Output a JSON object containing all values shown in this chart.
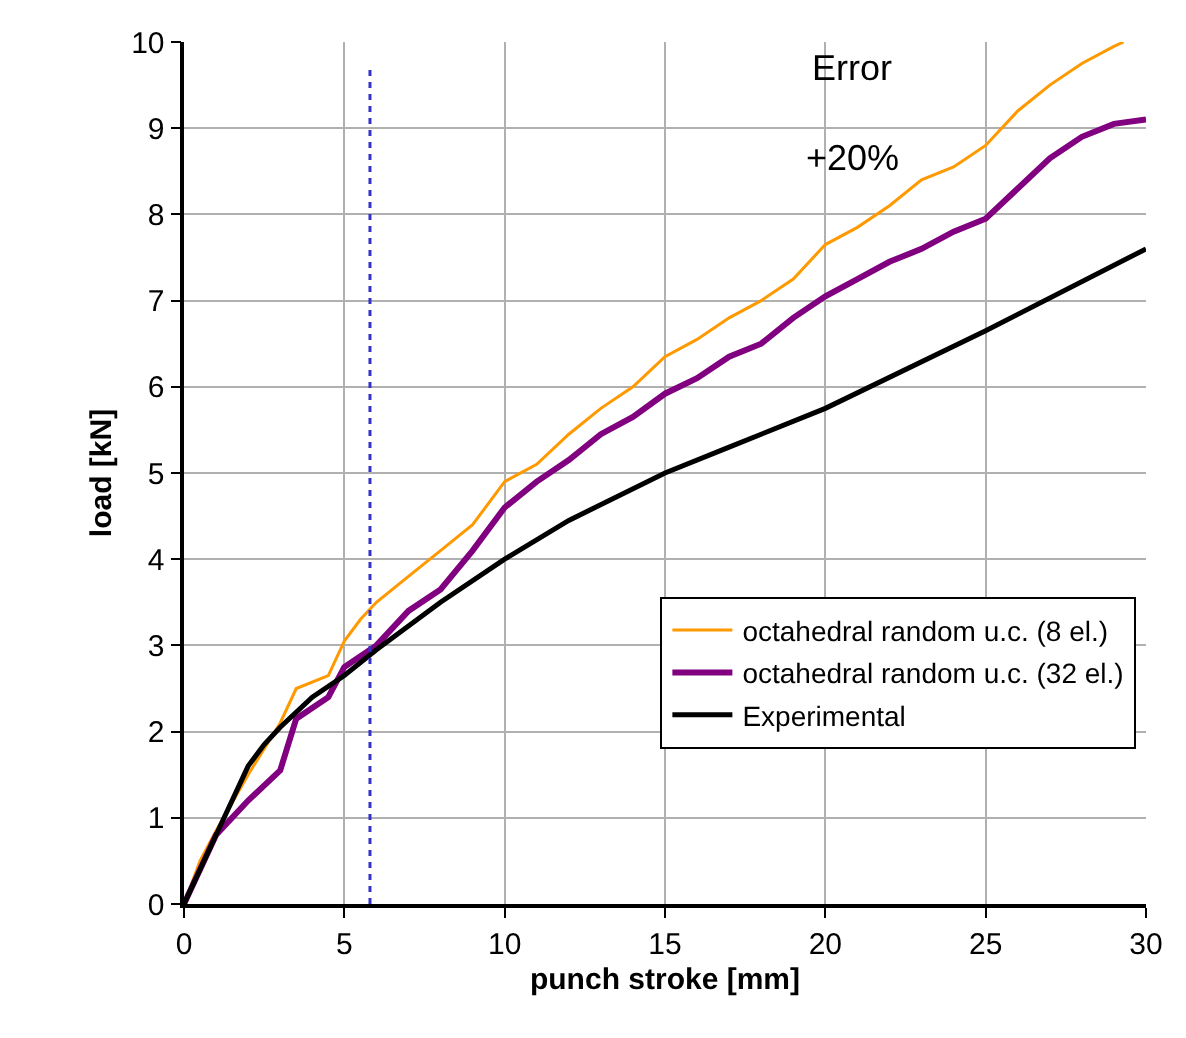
{
  "chart_data": {
    "type": "line",
    "xlabel": "punch stroke [mm]",
    "ylabel": "load [kN]",
    "xlim": [
      0,
      30
    ],
    "xticks": [
      0,
      5,
      10,
      15,
      20,
      25,
      30
    ],
    "ylim": [
      0,
      10
    ],
    "yticks": [
      0,
      1,
      2,
      3,
      4,
      5,
      6,
      7,
      8,
      9,
      10
    ],
    "grid": true,
    "legend": "bottom right",
    "line_style": "solid",
    "marker": "none",
    "annotations": [
      "Error",
      "+20%"
    ],
    "ref_lines": [
      {
        "axis": "x",
        "value": 5.8,
        "label": null,
        "color": "#3333cc",
        "line_style": "dotted"
      }
    ],
    "series": [
      {
        "name": "octahedral random u.c. (8 el.)",
        "color": "#ff9900",
        "x": [
          0,
          0.5,
          1,
          2,
          3,
          3.5,
          4.5,
          5,
          5.5,
          6,
          7,
          8,
          9,
          10,
          11,
          12,
          13,
          14,
          15,
          16,
          17,
          18,
          19,
          20,
          21,
          22,
          23,
          24,
          25,
          26,
          27,
          28,
          29,
          29.3
        ],
        "values": [
          0,
          0.5,
          0.85,
          1.5,
          2.1,
          2.5,
          2.65,
          3.05,
          3.3,
          3.5,
          3.8,
          4.1,
          4.4,
          4.9,
          5.1,
          5.45,
          5.75,
          6.0,
          6.35,
          6.55,
          6.8,
          7.0,
          7.25,
          7.65,
          7.85,
          8.1,
          8.4,
          8.55,
          8.8,
          9.2,
          9.5,
          9.75,
          9.95,
          10.0
        ]
      },
      {
        "name": "octahedral random u.c. (32 el.)",
        "color": "#800080",
        "x": [
          0,
          0.5,
          1,
          2,
          3,
          3.5,
          4.5,
          5,
          6,
          7,
          8,
          9,
          10,
          11,
          12,
          13,
          14,
          15,
          16,
          17,
          18,
          19,
          20,
          21,
          22,
          23,
          24,
          25,
          26,
          27,
          28,
          29,
          30
        ],
        "values": [
          0,
          0.4,
          0.8,
          1.2,
          1.55,
          2.15,
          2.4,
          2.75,
          3.0,
          3.4,
          3.65,
          4.1,
          4.6,
          4.9,
          5.15,
          5.45,
          5.65,
          5.92,
          6.1,
          6.35,
          6.5,
          6.8,
          7.05,
          7.25,
          7.45,
          7.6,
          7.8,
          7.95,
          8.3,
          8.65,
          8.9,
          9.05,
          9.1
        ]
      },
      {
        "name": "Experimental",
        "color": "#000000",
        "x": [
          0,
          1,
          2,
          2.5,
          3,
          4,
          5,
          6,
          8,
          10,
          12,
          15,
          17,
          20,
          25,
          30
        ],
        "values": [
          0,
          0.8,
          1.6,
          1.85,
          2.05,
          2.4,
          2.65,
          2.95,
          3.5,
          4.0,
          4.45,
          5.0,
          5.3,
          5.75,
          6.65,
          7.6
        ]
      }
    ]
  }
}
